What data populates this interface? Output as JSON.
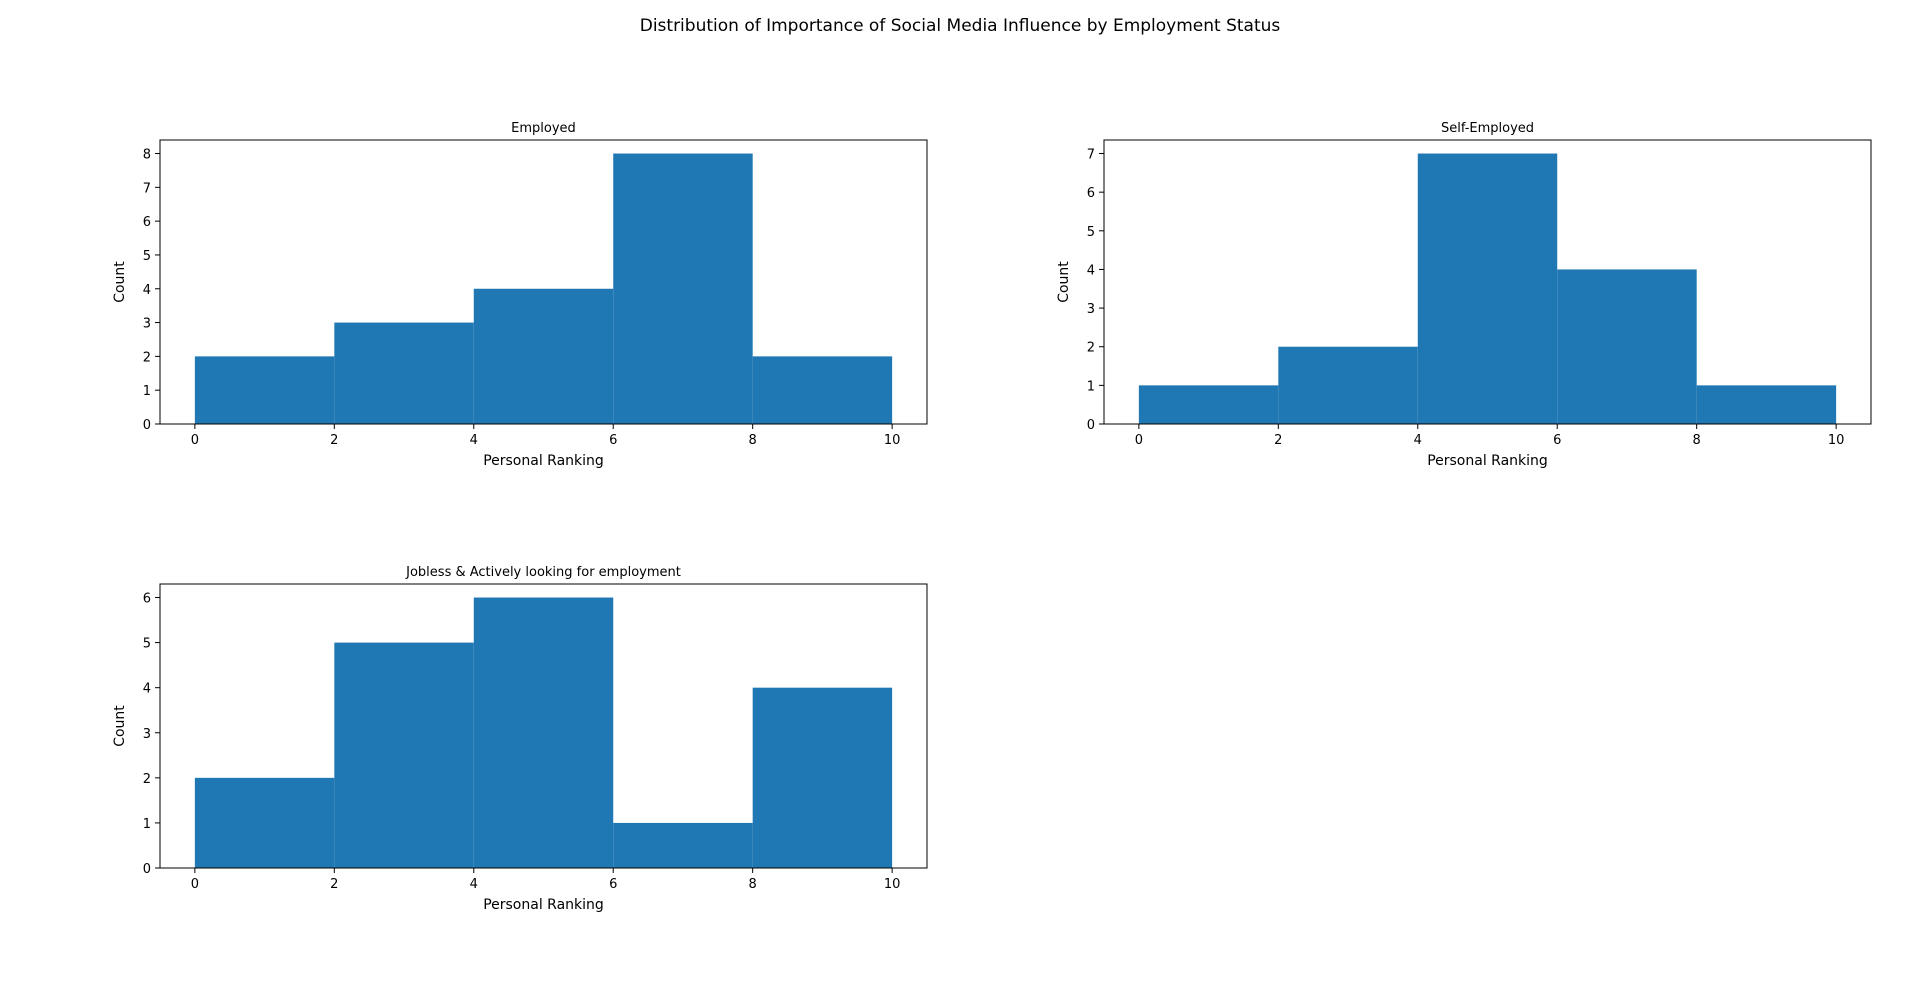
{
  "figure": {
    "title": "Distribution of Importance of Social Media Influence by Employment Status"
  },
  "chart_data": [
    {
      "type": "bar",
      "title": "Employed",
      "xlabel": "Personal Ranking",
      "ylabel": "Count",
      "bin_edges": [
        0,
        2,
        4,
        6,
        8,
        10
      ],
      "values": [
        2,
        3,
        4,
        8,
        2
      ],
      "xlim": [
        -0.5,
        10.5
      ],
      "ylim": [
        0,
        8.4
      ],
      "xticks": [
        0,
        2,
        4,
        6,
        8,
        10
      ],
      "yticks": [
        0,
        1,
        2,
        3,
        4,
        5,
        6,
        7,
        8
      ],
      "color": "#1f77b4",
      "grid": false
    },
    {
      "type": "bar",
      "title": "Self-Employed",
      "xlabel": "Personal Ranking",
      "ylabel": "Count",
      "bin_edges": [
        0,
        2,
        4,
        6,
        8,
        10
      ],
      "values": [
        1,
        2,
        7,
        4,
        1
      ],
      "xlim": [
        -0.5,
        10.5
      ],
      "ylim": [
        0,
        7.35
      ],
      "xticks": [
        0,
        2,
        4,
        6,
        8,
        10
      ],
      "yticks": [
        0,
        1,
        2,
        3,
        4,
        5,
        6,
        7
      ],
      "color": "#1f77b4",
      "grid": false
    },
    {
      "type": "bar",
      "title": "Jobless & Actively looking for employment",
      "xlabel": "Personal Ranking",
      "ylabel": "Count",
      "bin_edges": [
        0,
        2,
        4,
        6,
        8,
        10
      ],
      "values": [
        2,
        5,
        6,
        1,
        4
      ],
      "xlim": [
        -0.5,
        10.5
      ],
      "ylim": [
        0,
        6.3
      ],
      "xticks": [
        0,
        2,
        4,
        6,
        8,
        10
      ],
      "yticks": [
        0,
        1,
        2,
        3,
        4,
        5,
        6
      ],
      "color": "#1f77b4",
      "grid": false
    }
  ]
}
